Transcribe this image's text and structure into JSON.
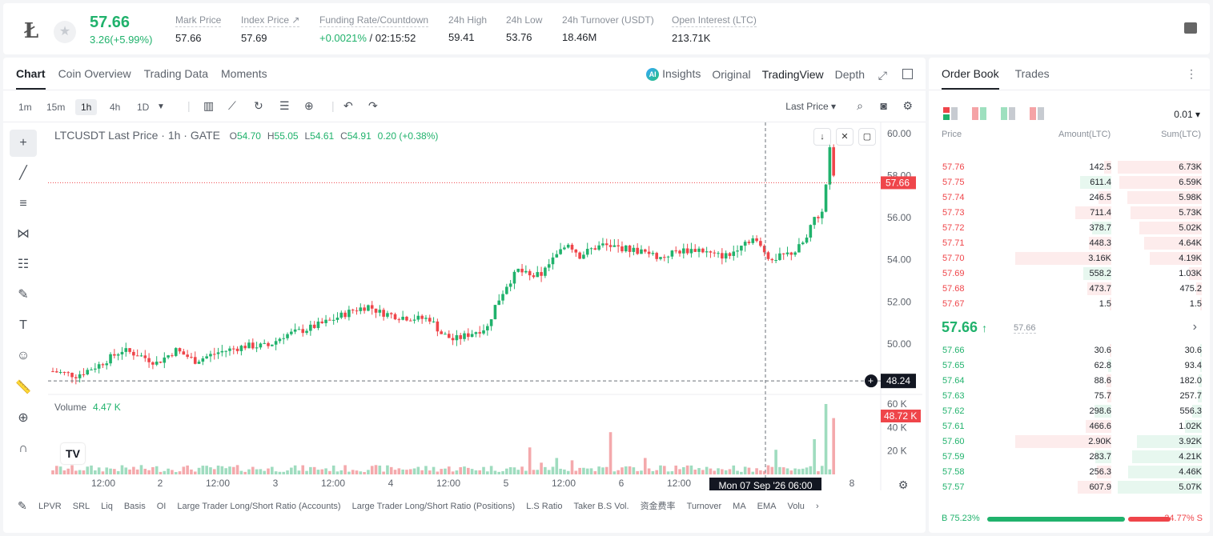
{
  "header": {
    "last_price": "57.66",
    "price_change": "3.26(+5.99%)",
    "stats": [
      {
        "label": "Mark Price",
        "value": "57.66"
      },
      {
        "label": "Index Price ↗",
        "value": "57.69"
      },
      {
        "label": "Funding Rate/Countdown",
        "value_up": "+0.0021%",
        "value_rest": " / 02:15:52"
      },
      {
        "label": "24h High",
        "value": "59.41"
      },
      {
        "label": "24h Low",
        "value": "53.76"
      },
      {
        "label": "24h Turnover (USDT)",
        "value": "18.46M"
      },
      {
        "label": "Open Interest (LTC)",
        "value": "213.71K"
      }
    ]
  },
  "chart_tabs": [
    "Chart",
    "Coin Overview",
    "Trading Data",
    "Moments"
  ],
  "view_tabs": {
    "insights": "Insights",
    "original": "Original",
    "tradingview": "TradingView",
    "depth": "Depth",
    "ai_badge": "AI"
  },
  "toolbar": {
    "intervals": [
      "1m",
      "15m",
      "1h",
      "4h",
      "1D"
    ],
    "price_type": "Last Price"
  },
  "legend": {
    "title": "LTCUSDT Last Price · 1h · GATE",
    "open_k": "O",
    "open": "54.70",
    "high_k": "H",
    "high": "55.05",
    "low_k": "L",
    "low": "54.61",
    "close_k": "C",
    "close": "54.91",
    "change": "0.20 (+0.38%)"
  },
  "volume_legend": {
    "label": "Volume",
    "value": "4.47 K"
  },
  "indicators": [
    "LPVR",
    "SRL",
    "Liq",
    "Basis",
    "OI",
    "Large Trader Long/Short Ratio (Accounts)",
    "Large Trader Long/Short Ratio (Positions)",
    "L.S Ratio",
    "Taker B.S Vol.",
    "资金费率",
    "Turnover",
    "MA",
    "EMA",
    "Volu"
  ],
  "chart_data": {
    "type": "candlestick",
    "symbol": "LTCUSDT",
    "interval": "1h",
    "y_ticks": [
      "60.00",
      "58.00",
      "56.00",
      "54.00",
      "52.00",
      "50.00"
    ],
    "ylim": [
      47.6,
      60.3
    ],
    "volume_ticks": [
      "60 K",
      "40 K",
      "20 K"
    ],
    "volume_max": 60,
    "x_ticks": [
      "12:00",
      "2",
      "12:00",
      "3",
      "12:00",
      "4",
      "12:00",
      "5",
      "12:00",
      "6",
      "12:00",
      "7",
      "8"
    ],
    "last_price_label": "57.66",
    "crosshair_price": "48.24",
    "crosshair_volume": "48.72 K",
    "crosshair_time": "Mon 07 Sep '26   06:00",
    "close_path": [
      [
        0,
        48.7
      ],
      [
        6,
        48.5
      ],
      [
        12,
        49.0
      ],
      [
        18,
        49.7
      ],
      [
        22,
        49.5
      ],
      [
        27,
        49.1
      ],
      [
        32,
        49.7
      ],
      [
        37,
        49.2
      ],
      [
        43,
        49.6
      ],
      [
        50,
        49.9
      ],
      [
        56,
        49.9
      ],
      [
        60,
        50.4
      ],
      [
        66,
        50.7
      ],
      [
        72,
        51.1
      ],
      [
        78,
        51.6
      ],
      [
        82,
        51.8
      ],
      [
        85,
        51.5
      ],
      [
        90,
        51.3
      ],
      [
        95,
        51.2
      ],
      [
        98,
        51.2
      ],
      [
        101,
        50.5
      ],
      [
        104,
        50.2
      ],
      [
        106,
        50.3
      ],
      [
        110,
        50.6
      ],
      [
        113,
        50.8
      ],
      [
        115,
        51.8
      ],
      [
        118,
        52.8
      ],
      [
        121,
        53.5
      ],
      [
        124,
        53.2
      ],
      [
        127,
        53.3
      ],
      [
        130,
        54.0
      ],
      [
        134,
        54.8
      ],
      [
        137,
        54.2
      ],
      [
        140,
        54.5
      ],
      [
        143,
        54.7
      ],
      [
        150,
        54.5
      ],
      [
        155,
        54.3
      ],
      [
        158,
        54.1
      ],
      [
        162,
        54.4
      ],
      [
        168,
        54.5
      ],
      [
        172,
        54.2
      ],
      [
        176,
        54.2
      ],
      [
        179,
        54.8
      ],
      [
        182,
        55.0
      ],
      [
        185,
        54.4
      ],
      [
        187,
        54.0
      ],
      [
        190,
        54.2
      ],
      [
        193,
        54.4
      ],
      [
        196,
        55.0
      ],
      [
        198,
        56.0
      ],
      [
        200,
        56.2
      ],
      [
        201,
        57.6
      ],
      [
        202,
        59.2
      ],
      [
        203,
        57.9
      ]
    ],
    "spikes": [
      [
        124,
        23
      ],
      [
        127,
        10
      ],
      [
        131,
        14
      ],
      [
        135,
        12
      ],
      [
        145,
        36
      ],
      [
        154,
        14
      ],
      [
        188,
        21
      ],
      [
        198,
        30
      ],
      [
        201,
        60
      ],
      [
        203,
        48
      ]
    ]
  },
  "order_book": {
    "tabs": [
      "Order Book",
      "Trades"
    ],
    "precision": "0.01 ▾",
    "headers": {
      "price": "Price",
      "amount": "Amount(LTC)",
      "sum": "Sum(LTC)"
    },
    "asks": [
      {
        "price": "57.76",
        "amount": "142.5",
        "sum": "6.73K"
      },
      {
        "price": "57.75",
        "amount": "611.4",
        "sum": "6.59K"
      },
      {
        "price": "57.74",
        "amount": "246.5",
        "sum": "5.98K"
      },
      {
        "price": "57.73",
        "amount": "711.4",
        "sum": "5.73K"
      },
      {
        "price": "57.72",
        "amount": "378.7",
        "sum": "5.02K"
      },
      {
        "price": "57.71",
        "amount": "448.3",
        "sum": "4.64K"
      },
      {
        "price": "57.70",
        "amount": "3.16K",
        "sum": "4.19K"
      },
      {
        "price": "57.69",
        "amount": "558.2",
        "sum": "1.03K"
      },
      {
        "price": "57.68",
        "amount": "473.7",
        "sum": "475.2"
      },
      {
        "price": "57.67",
        "amount": "1.5",
        "sum": "1.5"
      }
    ],
    "mid": {
      "price": "57.66",
      "arrow": "↑",
      "mark": "57.66"
    },
    "bids": [
      {
        "price": "57.66",
        "amount": "30.6",
        "sum": "30.6"
      },
      {
        "price": "57.65",
        "amount": "62.8",
        "sum": "93.4"
      },
      {
        "price": "57.64",
        "amount": "88.6",
        "sum": "182.0"
      },
      {
        "price": "57.63",
        "amount": "75.7",
        "sum": "257.7"
      },
      {
        "price": "57.62",
        "amount": "298.6",
        "sum": "556.3"
      },
      {
        "price": "57.61",
        "amount": "466.6",
        "sum": "1.02K"
      },
      {
        "price": "57.60",
        "amount": "2.90K",
        "sum": "3.92K"
      },
      {
        "price": "57.59",
        "amount": "283.7",
        "sum": "4.21K"
      },
      {
        "price": "57.58",
        "amount": "256.3",
        "sum": "4.46K"
      },
      {
        "price": "57.57",
        "amount": "607.9",
        "sum": "5.07K"
      }
    ],
    "buy_ratio": "B 75.23%",
    "sell_ratio": "24.77% S",
    "buy_pct": 75.23
  },
  "colors": {
    "up": "#20b26c",
    "down": "#ef454a",
    "up_light": "#e7f7ef",
    "down_light": "#fdecec"
  }
}
